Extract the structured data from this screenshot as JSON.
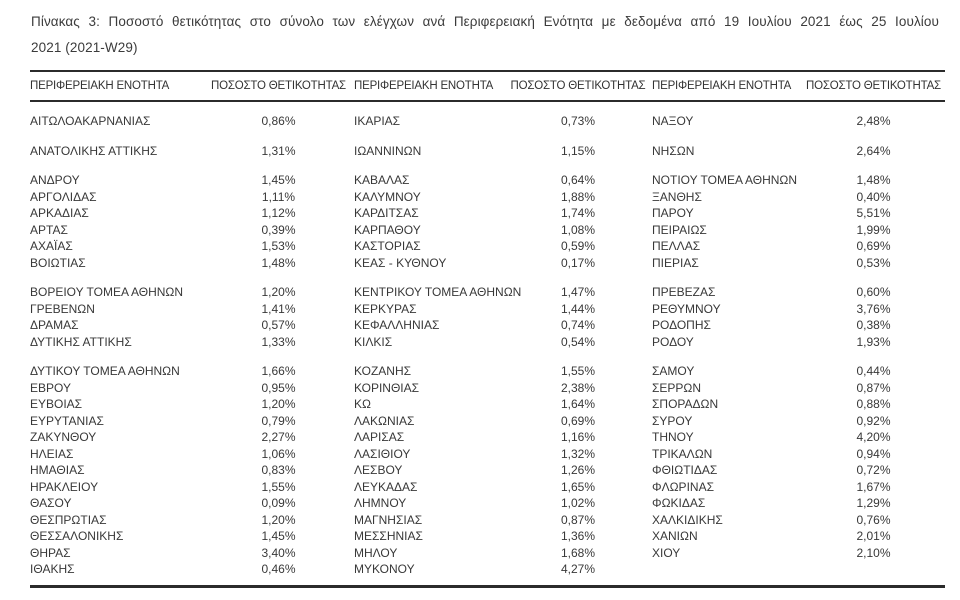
{
  "title": {
    "line1": "Πίνακας 3:  Ποσοστό θετικότητας στο σύνολο των ελέγχων ανά Περιφερειακή Ενότητα με δεδομένα από 19 Ιουλίου 2021 έως 25 Ιουλίου",
    "line2": "2021 (2021-W29)"
  },
  "table": {
    "headers": [
      "ΠΕΡΙΦΕΡΕΙΑΚΗ ΕΝΟΤΗΤΑ",
      "ΠΟΣΟΣΤΟ ΘΕΤΙΚΟΤΗΤΑΣ",
      "ΠΕΡΙΦΕΡΕΙΑΚΗ ΕΝΟΤΗΤΑ",
      "ΠΟΣΟΣΤΟ ΘΕΤΙΚΟΤΗΤΑΣ",
      "ΠΕΡΙΦΕΡΕΙΑΚΗ ΕΝΟΤΗΤΑ",
      "ΠΟΣΟΣΤΟ ΘΕΤΙΚΟΤΗΤΑΣ"
    ],
    "groups": [
      {
        "rows": [
          [
            "ΑΙΤΩΛΟΑΚΑΡΝΑΝΙΑΣ",
            "0,86%",
            "ΙΚΑΡΙΑΣ",
            "0,73%",
            "ΝΑΞΟΥ",
            "2,48%"
          ]
        ]
      },
      {
        "rows": [
          [
            "ΑΝΑΤΟΛΙΚΗΣ ΑΤΤΙΚΗΣ",
            "1,31%",
            "ΙΩΑΝΝΙΝΩΝ",
            "1,15%",
            "ΝΗΣΩΝ",
            "2,64%"
          ]
        ]
      },
      {
        "rows": [
          [
            "ΑΝΔΡΟΥ",
            "1,45%",
            "ΚΑΒΑΛΑΣ",
            "0,64%",
            "ΝΟΤΙΟΥ ΤΟΜΕΑ ΑΘΗΝΩΝ",
            "1,48%"
          ],
          [
            "ΑΡΓΟΛΙΔΑΣ",
            "1,11%",
            "ΚΑΛΥΜΝΟΥ",
            "1,88%",
            "ΞΑΝΘΗΣ",
            "0,40%"
          ],
          [
            "ΑΡΚΑΔΙΑΣ",
            "1,12%",
            "ΚΑΡΔΙΤΣΑΣ",
            "1,74%",
            "ΠΑΡΟΥ",
            "5,51%"
          ],
          [
            "ΑΡΤΑΣ",
            "0,39%",
            "ΚΑΡΠΑΘΟΥ",
            "1,08%",
            "ΠΕΙΡΑΙΩΣ",
            "1,99%"
          ],
          [
            "ΑΧΑΪΑΣ",
            "1,53%",
            "ΚΑΣΤΟΡΙΑΣ",
            "0,59%",
            "ΠΕΛΛΑΣ",
            "0,69%"
          ],
          [
            "ΒΟΙΩΤΙΑΣ",
            "1,48%",
            "ΚΕΑΣ - ΚΥΘΝΟΥ",
            "0,17%",
            "ΠΙΕΡΙΑΣ",
            "0,53%"
          ]
        ]
      },
      {
        "rows": [
          [
            "ΒΟΡΕΙΟΥ ΤΟΜΕΑ ΑΘΗΝΩΝ",
            "1,20%",
            "ΚΕΝΤΡΙΚΟΥ ΤΟΜΕΑ ΑΘΗΝΩΝ",
            "1,47%",
            "ΠΡΕΒΕΖΑΣ",
            "0,60%"
          ],
          [
            "ΓΡΕΒΕΝΩΝ",
            "1,41%",
            "ΚΕΡΚΥΡΑΣ",
            "1,44%",
            "ΡΕΘΥΜΝΟΥ",
            "3,76%"
          ],
          [
            "ΔΡΑΜΑΣ",
            "0,57%",
            "ΚΕΦΑΛΛΗΝΙΑΣ",
            "0,74%",
            "ΡΟΔΟΠΗΣ",
            "0,38%"
          ],
          [
            "ΔΥΤΙΚΗΣ ΑΤΤΙΚΗΣ",
            "1,33%",
            "ΚΙΛΚΙΣ",
            "0,54%",
            "ΡΟΔΟΥ",
            "1,93%"
          ]
        ]
      },
      {
        "rows": [
          [
            "ΔΥΤΙΚΟΥ ΤΟΜΕΑ ΑΘΗΝΩΝ",
            "1,66%",
            "ΚΟΖΑΝΗΣ",
            "1,55%",
            "ΣΑΜΟΥ",
            "0,44%"
          ],
          [
            "ΕΒΡΟΥ",
            "0,95%",
            "ΚΟΡΙΝΘΙΑΣ",
            "2,38%",
            "ΣΕΡΡΩΝ",
            "0,87%"
          ],
          [
            "ΕΥΒΟΙΑΣ",
            "1,20%",
            "ΚΩ",
            "1,64%",
            "ΣΠΟΡΑΔΩΝ",
            "0,88%"
          ],
          [
            "ΕΥΡΥΤΑΝΙΑΣ",
            "0,79%",
            "ΛΑΚΩΝΙΑΣ",
            "0,69%",
            "ΣΥΡΟΥ",
            "0,92%"
          ],
          [
            "ΖΑΚΥΝΘΟΥ",
            "2,27%",
            "ΛΑΡΙΣΑΣ",
            "1,16%",
            "ΤΗΝΟΥ",
            "4,20%"
          ],
          [
            "ΗΛΕΙΑΣ",
            "1,06%",
            "ΛΑΣΙΘΙΟΥ",
            "1,32%",
            "ΤΡΙΚΑΛΩΝ",
            "0,94%"
          ],
          [
            "ΗΜΑΘΙΑΣ",
            "0,83%",
            "ΛΕΣΒΟΥ",
            "1,26%",
            "ΦΘΙΩΤΙΔΑΣ",
            "0,72%"
          ],
          [
            "ΗΡΑΚΛΕΙΟΥ",
            "1,55%",
            "ΛΕΥΚΑΔΑΣ",
            "1,65%",
            "ΦΛΩΡΙΝΑΣ",
            "1,67%"
          ],
          [
            "ΘΑΣΟΥ",
            "0,09%",
            "ΛΗΜΝΟΥ",
            "1,02%",
            "ΦΩΚΙΔΑΣ",
            "1,29%"
          ],
          [
            "ΘΕΣΠΡΩΤΙΑΣ",
            "1,20%",
            "ΜΑΓΝΗΣΙΑΣ",
            "0,87%",
            "ΧΑΛΚΙΔΙΚΗΣ",
            "0,76%"
          ],
          [
            "ΘΕΣΣΑΛΟΝΙΚΗΣ",
            "1,45%",
            "ΜΕΣΣΗΝΙΑΣ",
            "1,36%",
            "ΧΑΝΙΩΝ",
            "2,01%"
          ],
          [
            "ΘΗΡΑΣ",
            "3,40%",
            "ΜΗΛΟΥ",
            "1,68%",
            "ΧΙΟΥ",
            "2,10%"
          ],
          [
            "ΙΘΑΚΗΣ",
            "0,46%",
            "ΜΥΚΟΝΟΥ",
            "4,27%",
            "",
            ""
          ]
        ]
      }
    ]
  }
}
